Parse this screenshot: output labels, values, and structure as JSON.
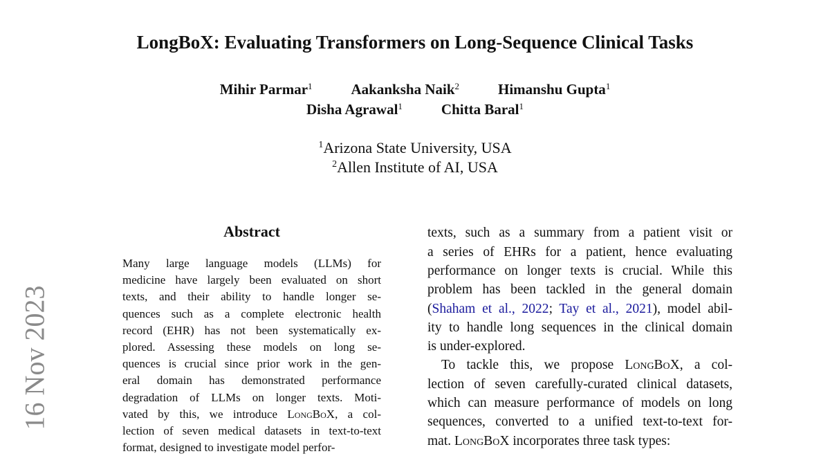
{
  "header": {
    "title": "LongBoX: Evaluating Transformers on Long-Sequence Clinical Tasks",
    "authors": [
      [
        {
          "name": "Mihir Parmar",
          "sup": "1"
        },
        {
          "name": "Aakanksha Naik",
          "sup": "2"
        },
        {
          "name": "Himanshu Gupta",
          "sup": "1"
        }
      ],
      [
        {
          "name": "Disha Agrawal",
          "sup": "1"
        },
        {
          "name": "Chitta Baral",
          "sup": "1"
        }
      ]
    ],
    "affiliations": [
      {
        "sup": "1",
        "text": "Arizona State University, USA"
      },
      {
        "sup": "2",
        "text": "Allen Institute of AI, USA"
      }
    ]
  },
  "stamp": "16 Nov 2023",
  "abstract": {
    "heading": "Abstract",
    "paragraphs": [
      [
        [
          "Many large language models (LLMs) for"
        ],
        [
          "medicine have largely been evaluated on short"
        ],
        [
          "texts, and their ability to handle longer se-"
        ],
        [
          "quences such as a complete electronic health"
        ],
        [
          "record (EHR) has not been systematically ex-"
        ],
        [
          "plored.  Assessing these models on long se-"
        ],
        [
          "quences is crucial since prior work in the gen-"
        ],
        [
          "eral domain has demonstrated performance"
        ],
        [
          "degradation of LLMs on longer texts.  Moti-"
        ],
        [
          "vated by this, we introduce ",
          {
            "smallcaps": "LongBoX"
          },
          ", a col-"
        ],
        [
          "lection of seven medical datasets in text-to-text"
        ],
        [
          "format, designed to investigate model perfor-"
        ]
      ]
    ]
  },
  "body": {
    "paragraphs": [
      [
        [
          "texts, such as a summary from a patient visit or"
        ],
        [
          "a series of EHRs for a patient, hence evaluating"
        ],
        [
          "performance on longer texts is crucial. While this"
        ],
        [
          "problem has been tackled in the general domain"
        ],
        [
          "(",
          {
            "cite": "Shaham et al., 2022"
          },
          "; ",
          {
            "cite": "Tay et al., 2021"
          },
          "), model abil-"
        ],
        [
          "ity to handle long sequences in the clinical domain"
        ],
        [
          "is under-explored."
        ]
      ],
      [
        [
          "To tackle this, we propose ",
          {
            "smallcaps": "LongBoX"
          },
          ", a col-"
        ],
        [
          "lection of seven carefully-curated clinical datasets,"
        ],
        [
          "which can measure performance of models on long"
        ],
        [
          "sequences, converted to a unified text-to-text for-"
        ],
        [
          "mat.  ",
          {
            "smallcaps": "LongBoX"
          },
          " incorporates three task types:"
        ]
      ]
    ]
  }
}
